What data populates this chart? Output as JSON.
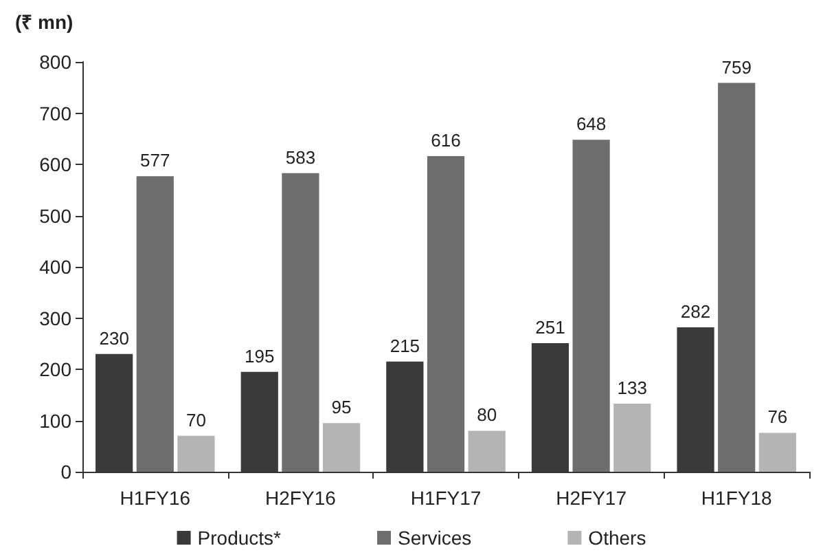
{
  "chart_data": {
    "type": "bar",
    "ylabel": "(₹ mn)",
    "categories": [
      "H1FY16",
      "H2FY16",
      "H1FY17",
      "H2FY17",
      "H1FY18"
    ],
    "series": [
      {
        "name": "Products*",
        "color": "#3a3a3a",
        "values": [
          230,
          195,
          215,
          251,
          282
        ]
      },
      {
        "name": "Services",
        "color": "#6e6e6e",
        "values": [
          577,
          583,
          616,
          648,
          759
        ]
      },
      {
        "name": "Others",
        "color": "#b4b4b4",
        "values": [
          70,
          95,
          80,
          133,
          76
        ]
      }
    ],
    "ylim": [
      0,
      800
    ],
    "yticks": [
      0,
      100,
      200,
      300,
      400,
      500,
      600,
      700,
      800
    ],
    "data_labels": true,
    "grid": false,
    "legend": "bottom"
  }
}
